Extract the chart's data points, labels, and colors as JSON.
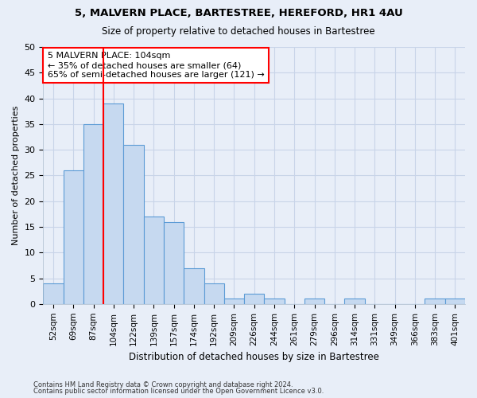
{
  "title1": "5, MALVERN PLACE, BARTESTREE, HEREFORD, HR1 4AU",
  "title2": "Size of property relative to detached houses in Bartestree",
  "xlabel": "Distribution of detached houses by size in Bartestree",
  "ylabel": "Number of detached properties",
  "categories": [
    "52sqm",
    "69sqm",
    "87sqm",
    "104sqm",
    "122sqm",
    "139sqm",
    "157sqm",
    "174sqm",
    "192sqm",
    "209sqm",
    "226sqm",
    "244sqm",
    "261sqm",
    "279sqm",
    "296sqm",
    "314sqm",
    "331sqm",
    "349sqm",
    "366sqm",
    "383sqm",
    "401sqm"
  ],
  "values": [
    4,
    26,
    35,
    39,
    31,
    17,
    16,
    7,
    4,
    1,
    2,
    1,
    0,
    1,
    0,
    1,
    0,
    0,
    0,
    1,
    1
  ],
  "bar_color": "#c6d9f0",
  "bar_edge_color": "#5b9bd5",
  "vline_color": "red",
  "annotation_text": "5 MALVERN PLACE: 104sqm\n← 35% of detached houses are smaller (64)\n65% of semi-detached houses are larger (121) →",
  "annotation_box_color": "white",
  "annotation_box_edge_color": "red",
  "ylim": [
    0,
    50
  ],
  "yticks": [
    0,
    5,
    10,
    15,
    20,
    25,
    30,
    35,
    40,
    45,
    50
  ],
  "grid_color": "#c8d4e8",
  "footnote1": "Contains HM Land Registry data © Crown copyright and database right 2024.",
  "footnote2": "Contains public sector information licensed under the Open Government Licence v3.0.",
  "bg_color": "#e8eef8"
}
